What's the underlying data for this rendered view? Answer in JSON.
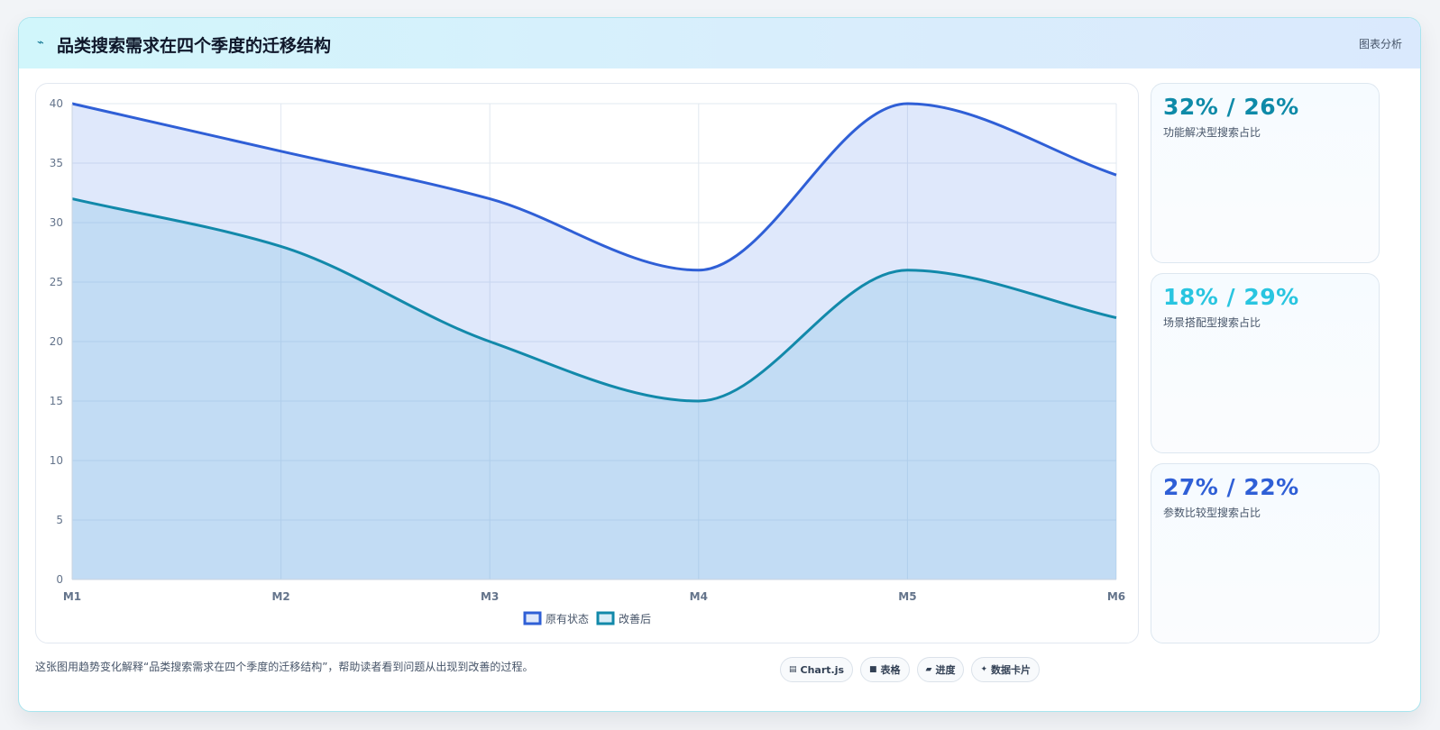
{
  "header": {
    "icon": "spark-icon",
    "title": "品类搜索需求在四个季度的迁移结构",
    "right_label": "图表分析"
  },
  "chart_data": {
    "type": "area",
    "categories": [
      "M1",
      "M2",
      "M3",
      "M4",
      "M5",
      "M6"
    ],
    "ylim": [
      0,
      40
    ],
    "yticks": [
      0,
      5,
      10,
      15,
      20,
      25,
      30,
      35,
      40
    ],
    "grid": true,
    "legend_position": "bottom",
    "series": [
      {
        "name": "原有状态",
        "values": [
          40,
          36,
          32,
          26,
          40,
          34
        ],
        "color": "#2f5fd6",
        "fill": "rgba(96,140,235,0.2)"
      },
      {
        "name": "改善后",
        "values": [
          32,
          28,
          20,
          15,
          26,
          22
        ],
        "color": "#1289aa",
        "fill": "rgba(120,190,225,0.28)"
      }
    ]
  },
  "stats": [
    {
      "value": "32% / 26%",
      "label": "功能解决型搜索占比",
      "color": "#0e8aa8"
    },
    {
      "value": "18% / 29%",
      "label": "场景搭配型搜索占比",
      "color": "#29c5e0"
    },
    {
      "value": "27% / 22%",
      "label": "参数比较型搜索占比",
      "color": "#2f5fd6"
    }
  ],
  "caption": "这张图用趋势变化解释“品类搜索需求在四个季度的迁移结构”，帮助读者看到问题从出现到改善的过程。",
  "pills": [
    {
      "icon": "chart-icon",
      "glyph": "▤",
      "label": "Chart.js"
    },
    {
      "icon": "table-icon",
      "glyph": "■",
      "label": "表格"
    },
    {
      "icon": "progress-icon",
      "glyph": "▰",
      "label": "进度"
    },
    {
      "icon": "data-card-icon",
      "glyph": "✦",
      "label": "数据卡片"
    }
  ]
}
